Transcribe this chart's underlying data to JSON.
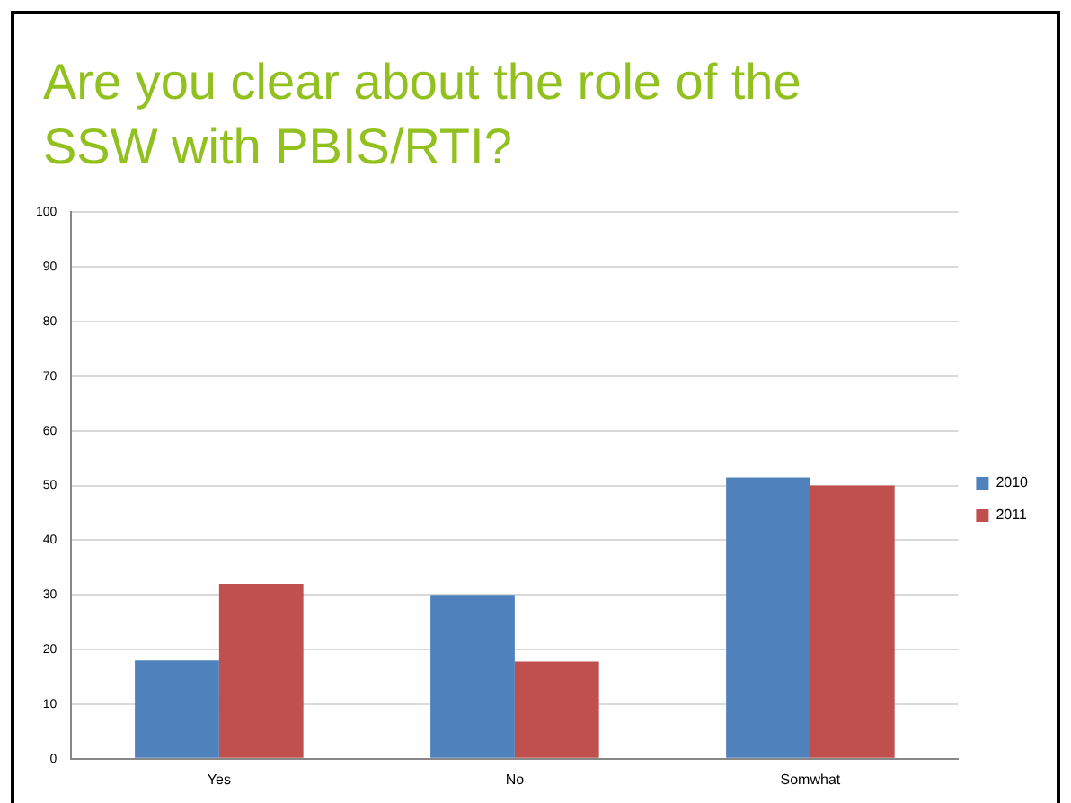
{
  "chart_data": {
    "type": "bar",
    "title": "Are you clear about the role of the SSW with PBIS/RTI?",
    "categories": [
      "Yes",
      "No",
      "Somwhat"
    ],
    "series": [
      {
        "name": "2010",
        "color": "#4f81bd",
        "values": [
          18,
          30,
          51.5
        ]
      },
      {
        "name": "2011",
        "color": "#c0504d",
        "values": [
          32,
          17.8,
          50
        ]
      }
    ],
    "ylim": [
      0,
      100
    ],
    "yticks": [
      0,
      10,
      20,
      30,
      40,
      50,
      60,
      70,
      80,
      90,
      100
    ],
    "grid": "y",
    "legend": "right"
  }
}
